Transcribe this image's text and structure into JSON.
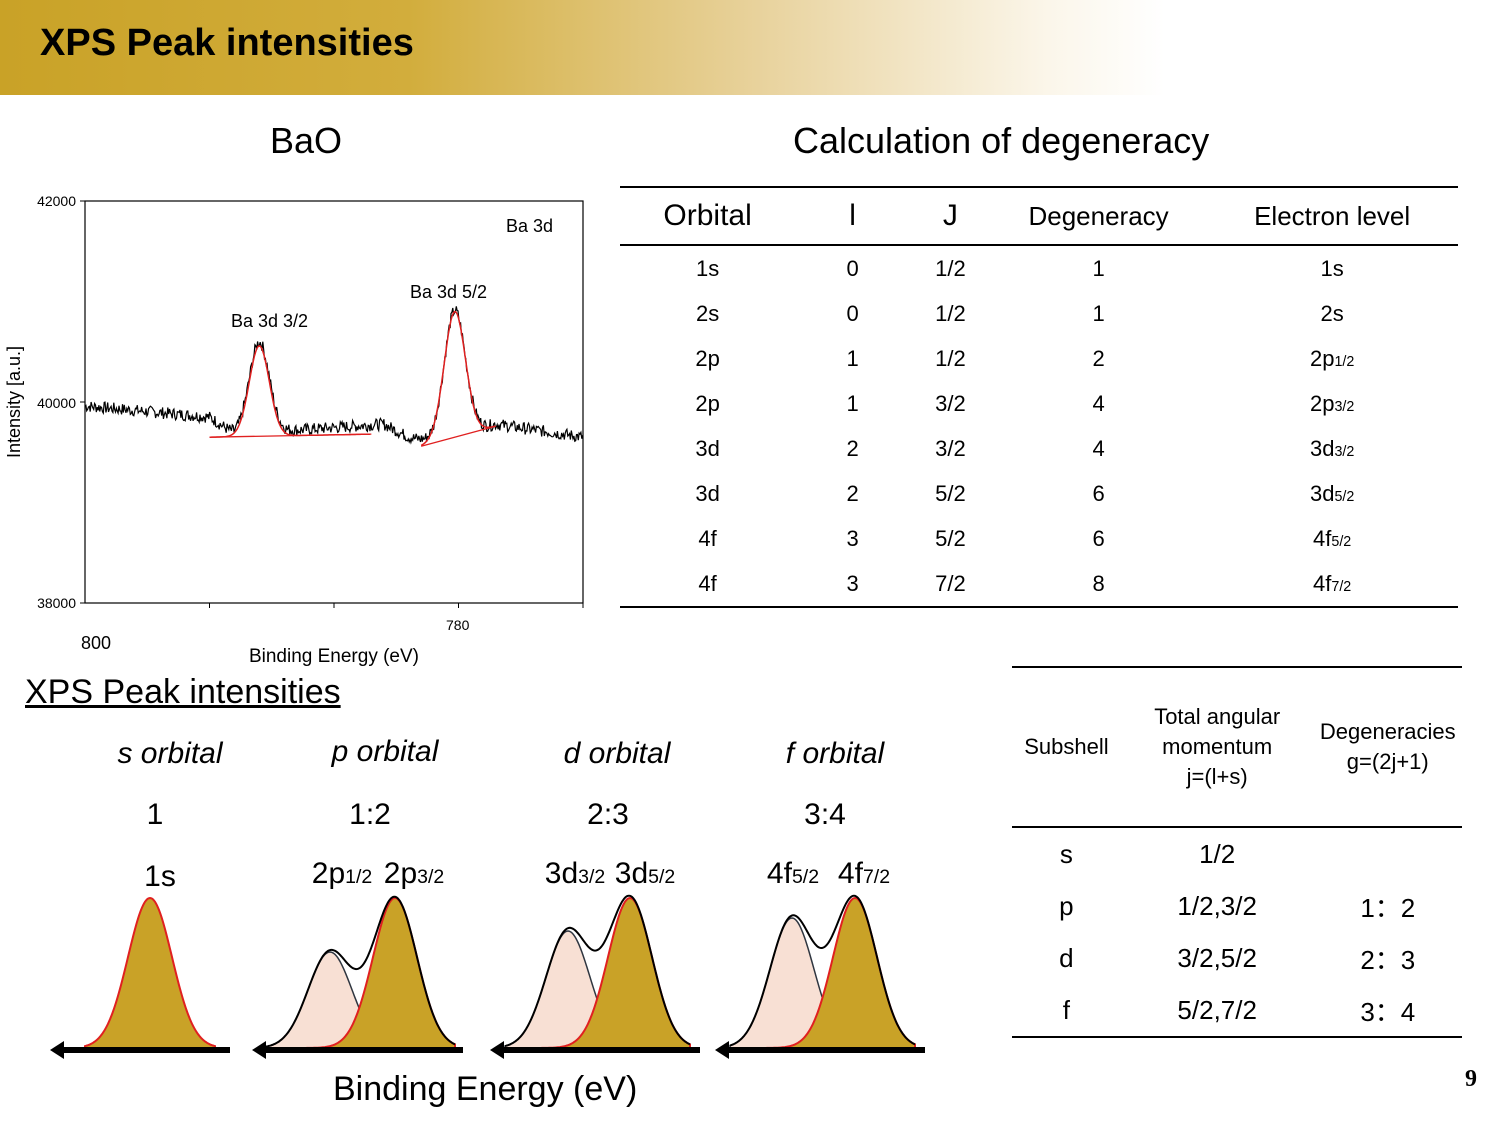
{
  "slide": {
    "title": "XPS Peak intensities",
    "page_number": "9"
  },
  "chart": {
    "heading": "BaO",
    "annotation": "Ba 3d",
    "peak_labels": [
      "Ba 3d 3/2",
      "Ba 3d 5/2"
    ],
    "xlabel": "Binding Energy (eV)",
    "ylabel": "Intensity [a.u.]",
    "x_ticks": [
      "800",
      "780"
    ],
    "y_ticks": [
      "42000",
      "40000",
      "38000"
    ]
  },
  "chart_data": {
    "type": "line",
    "x_axis": "reversed",
    "xlim": [
      810,
      770
    ],
    "ylim": [
      38000,
      42000
    ],
    "peaks": [
      {
        "name": "Ba 3d 3/2",
        "center": 796,
        "height": 40560
      },
      {
        "name": "Ba 3d 5/2",
        "center": 780.3,
        "height": 40880
      }
    ],
    "background_level": 39800
  },
  "degeneracy_table": {
    "heading": "Calculation of degeneracy",
    "headers": [
      "Orbital",
      "l",
      "J",
      "Degeneracy",
      "Electron level"
    ],
    "rows": [
      {
        "orbital": "1s",
        "l": "0",
        "j": "1/2",
        "deg": "1",
        "level": "1s",
        "level_sub": ""
      },
      {
        "orbital": "2s",
        "l": "0",
        "j": "1/2",
        "deg": "1",
        "level": "2s",
        "level_sub": ""
      },
      {
        "orbital": "2p",
        "l": "1",
        "j": "1/2",
        "deg": "2",
        "level": "2p",
        "level_sub": "1/2"
      },
      {
        "orbital": "2p",
        "l": "1",
        "j": "3/2",
        "deg": "4",
        "level": "2p",
        "level_sub": "3/2"
      },
      {
        "orbital": "3d",
        "l": "2",
        "j": "3/2",
        "deg": "4",
        "level": "3d",
        "level_sub": "3/2"
      },
      {
        "orbital": "3d",
        "l": "2",
        "j": "5/2",
        "deg": "6",
        "level": "3d",
        "level_sub": "5/2"
      },
      {
        "orbital": "4f",
        "l": "3",
        "j": "5/2",
        "deg": "6",
        "level": "4f",
        "level_sub": "5/2"
      },
      {
        "orbital": "4f",
        "l": "3",
        "j": "7/2",
        "deg": "8",
        "level": "4f",
        "level_sub": "7/2"
      }
    ]
  },
  "peak_section": {
    "heading": "XPS Peak intensities",
    "xlabel": "Binding Energy (eV)",
    "orbitals": [
      {
        "title": "s orbital",
        "ratio": "1",
        "labels": [
          {
            "main": "1s",
            "sub": ""
          }
        ]
      },
      {
        "title": "p orbital",
        "ratio": "1:2",
        "labels": [
          {
            "main": "2p",
            "sub": "1/2"
          },
          {
            "main": "2p",
            "sub": "3/2"
          }
        ]
      },
      {
        "title": "d orbital",
        "ratio": "2:3",
        "labels": [
          {
            "main": "3d",
            "sub": "3/2"
          },
          {
            "main": "3d",
            "sub": "5/2"
          }
        ]
      },
      {
        "title": "f orbital",
        "ratio": "3:4",
        "labels": [
          {
            "main": "4f",
            "sub": "5/2"
          },
          {
            "main": "4f",
            "sub": "7/2"
          }
        ]
      }
    ]
  },
  "subshell_table": {
    "headers": {
      "subshell": "Subshell",
      "momentum": [
        "Total angular",
        "momentum",
        "j=(l+s)"
      ],
      "degeneracy": [
        "Degeneracies",
        "g=(2j+1)"
      ]
    },
    "rows": [
      {
        "subshell": "s",
        "j": "1/2",
        "g": ""
      },
      {
        "subshell": "p",
        "j": "1/2,3/2",
        "g": "1：2"
      },
      {
        "subshell": "d",
        "j": "3/2,5/2",
        "g": "2：3"
      },
      {
        "subshell": "f",
        "j": "5/2,7/2",
        "g": "3：4"
      }
    ]
  },
  "colors": {
    "gold": "#c9a227",
    "peach": "#f8e0d4",
    "fit_red": "#e02020"
  }
}
